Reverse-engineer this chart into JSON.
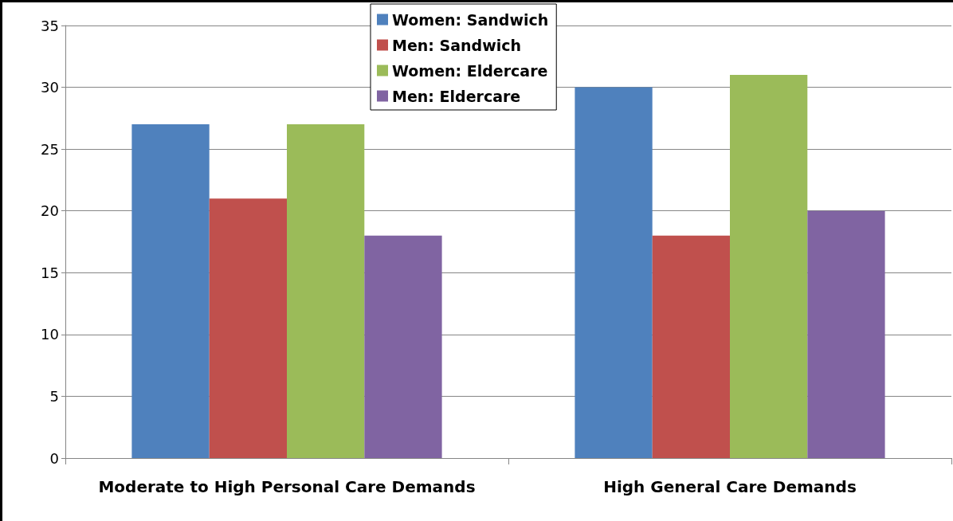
{
  "chart_data": {
    "type": "bar",
    "categories": [
      "Moderate to High Personal Care Demands",
      "High General Care Demands"
    ],
    "series": [
      {
        "name": "Women: Sandwich",
        "color": "#4f81bd",
        "values": [
          27,
          30
        ]
      },
      {
        "name": "Men: Sandwich",
        "color": "#c0504d",
        "values": [
          21,
          18
        ]
      },
      {
        "name": "Women: Eldercare",
        "color": "#9bbb59",
        "values": [
          27,
          31
        ]
      },
      {
        "name": "Men: Eldercare",
        "color": "#8064a2",
        "values": [
          18,
          20
        ]
      }
    ],
    "ylim": [
      0,
      35
    ],
    "yticks": [
      0,
      5,
      10,
      15,
      20,
      25,
      30,
      35
    ],
    "grid": "y",
    "legend": "top"
  }
}
